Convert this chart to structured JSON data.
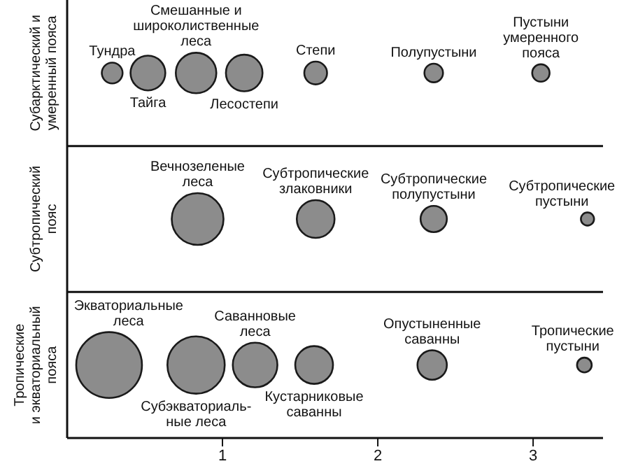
{
  "chart_data": {
    "type": "bubble",
    "orientation": "horizontal",
    "xlim": [
      0,
      3.45
    ],
    "xticks": [
      1,
      2,
      3
    ],
    "categories": [
      "Субарктический и\nумеренный пояса",
      "Субтропический\nпояс",
      "Тропические\nи экваториальный\nпояса"
    ],
    "series": [
      {
        "color": "#8c8c8c",
        "values": [
          0.29,
          0.84,
          0.27
        ],
        "sizes": [
          0.1,
          0.62,
          1
        ]
      },
      {
        "color": "#8c8c8c",
        "values": [
          0.52,
          1.6,
          0.83
        ],
        "sizes": [
          0.28,
          0.33,
          0.76
        ]
      },
      {
        "color": "#8c8c8c",
        "values": [
          0.83,
          2.36,
          1.21
        ],
        "sizes": [
          0.38,
          0.16,
          0.46
        ]
      },
      {
        "color": "#8c8c8c",
        "values": [
          1.14,
          3.35,
          1.59
        ],
        "sizes": [
          0.31,
          0.04,
          0.33
        ]
      },
      {
        "color": "#8c8c8c",
        "values": [
          1.6,
          null,
          2.35
        ],
        "sizes": [
          0.12,
          null,
          0.2
        ]
      },
      {
        "color": "#8c8c8c",
        "values": [
          2.36,
          null,
          3.33
        ],
        "sizes": [
          0.08,
          null,
          0.05
        ]
      },
      {
        "color": "#8c8c8c",
        "values": [
          3.05,
          null,
          null
        ],
        "sizes": [
          0.07,
          null,
          null
        ]
      }
    ],
    "annotations": [
      {
        "text": "Тундра",
        "x": 0.29,
        "y": "Субарктический и\nумеренный пояса"
      },
      {
        "text": "Тайга",
        "x": 0.52,
        "y": "Субарктический и\nумеренный пояса"
      },
      {
        "text": "Смешанные и\nшироколиственные\nлеса",
        "x": 0.83,
        "y": "Субарктический и\nумеренный пояса"
      },
      {
        "text": "Лесостепи",
        "x": 1.14,
        "y": "Субарктический и\nумеренный пояса"
      },
      {
        "text": "Степи",
        "x": 1.6,
        "y": "Субарктический и\nумеренный пояса"
      },
      {
        "text": "Полупустыни",
        "x": 2.36,
        "y": "Субарктический и\nумеренный пояса"
      },
      {
        "text": "Пустыни\nумеренного\nпояса",
        "x": 3.05,
        "y": "Субарктический и\nумеренный пояса"
      },
      {
        "text": "Вечнозеленые\nлеса",
        "x": 0.84,
        "y": "Субтропический\nпояс"
      },
      {
        "text": "Субтропические\nзлаковники",
        "x": 1.6,
        "y": "Субтропический\nпояс"
      },
      {
        "text": "Субтропические\nполупустыни",
        "x": 2.36,
        "y": "Субтропический\nпояс"
      },
      {
        "text": "Субтропические\nпустыни",
        "x": 3.35,
        "y": "Субтропический\nпояс"
      },
      {
        "text": "Экваториальные\nлеса",
        "x": 0.27,
        "y": "Тропические\nи экваториальный\nпояса"
      },
      {
        "text": "Субэкваториаль-\nные леса",
        "x": 0.83,
        "y": "Тропические\nи экваториальный\nпояса"
      },
      {
        "text": "Саванновые\nлеса",
        "x": 1.21,
        "y": "Тропические\nи экваториальный\nпояса"
      },
      {
        "text": "Кустарниковые\nсаванны",
        "x": 1.59,
        "y": "Тропические\nи экваториальный\nпояса"
      },
      {
        "text": "Опустыненные\nсаванны",
        "x": 2.35,
        "y": "Тропические\nи экваториальный\nпояса"
      },
      {
        "text": "Тропические\nпустыни",
        "x": 3.33,
        "y": "Тропические\nи экваториальный\nпояса"
      }
    ]
  }
}
